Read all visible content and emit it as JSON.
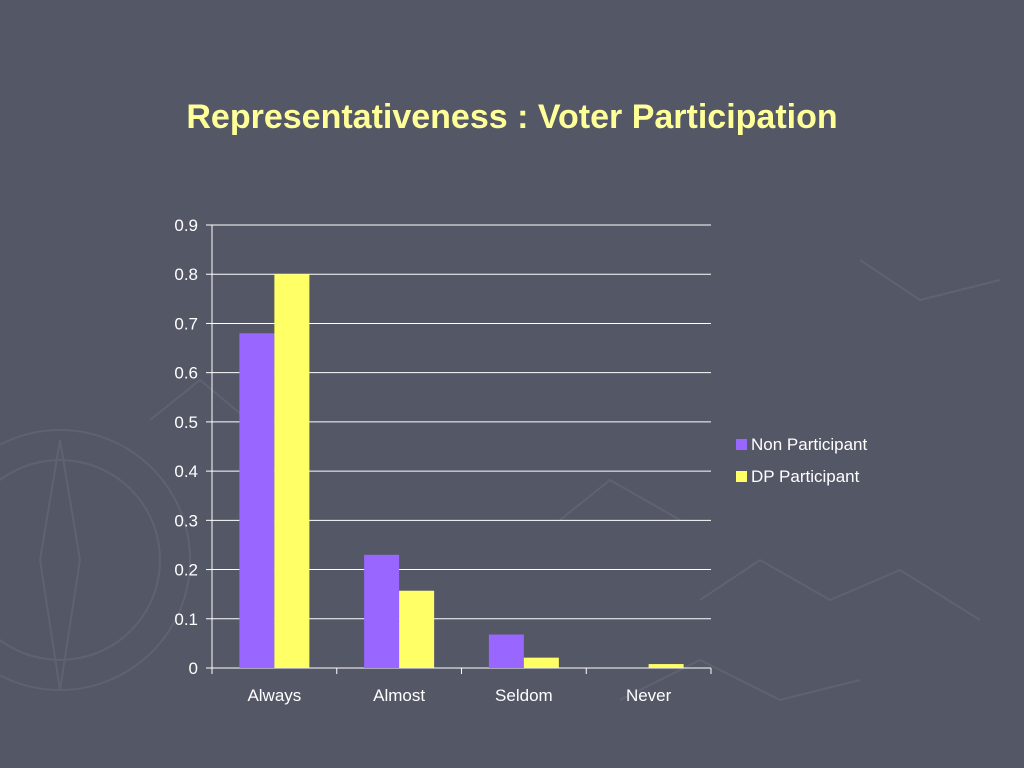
{
  "slide": {
    "title": "Representativeness : Voter Participation"
  },
  "chart_data": {
    "type": "bar",
    "categories": [
      "Always",
      "Almost",
      "Seldom",
      "Never"
    ],
    "series": [
      {
        "name": "Non Participant",
        "values": [
          0.68,
          0.23,
          0.068,
          0.0
        ],
        "color": "#9966ff"
      },
      {
        "name": "DP Participant",
        "values": [
          0.8,
          0.157,
          0.021,
          0.008
        ],
        "color": "#ffff66"
      }
    ],
    "title": "",
    "xlabel": "",
    "ylabel": "",
    "ylim": [
      0,
      0.9
    ],
    "yticks": [
      "0",
      "0.1",
      "0.2",
      "0.3",
      "0.4",
      "0.5",
      "0.6",
      "0.7",
      "0.8",
      "0.9"
    ],
    "grid": true,
    "legend": "right",
    "colors": {
      "gridline": "#ffffff",
      "axis": "#ffffff",
      "text": "#ffffff",
      "background": "#545766",
      "title": "#ffff99"
    }
  }
}
